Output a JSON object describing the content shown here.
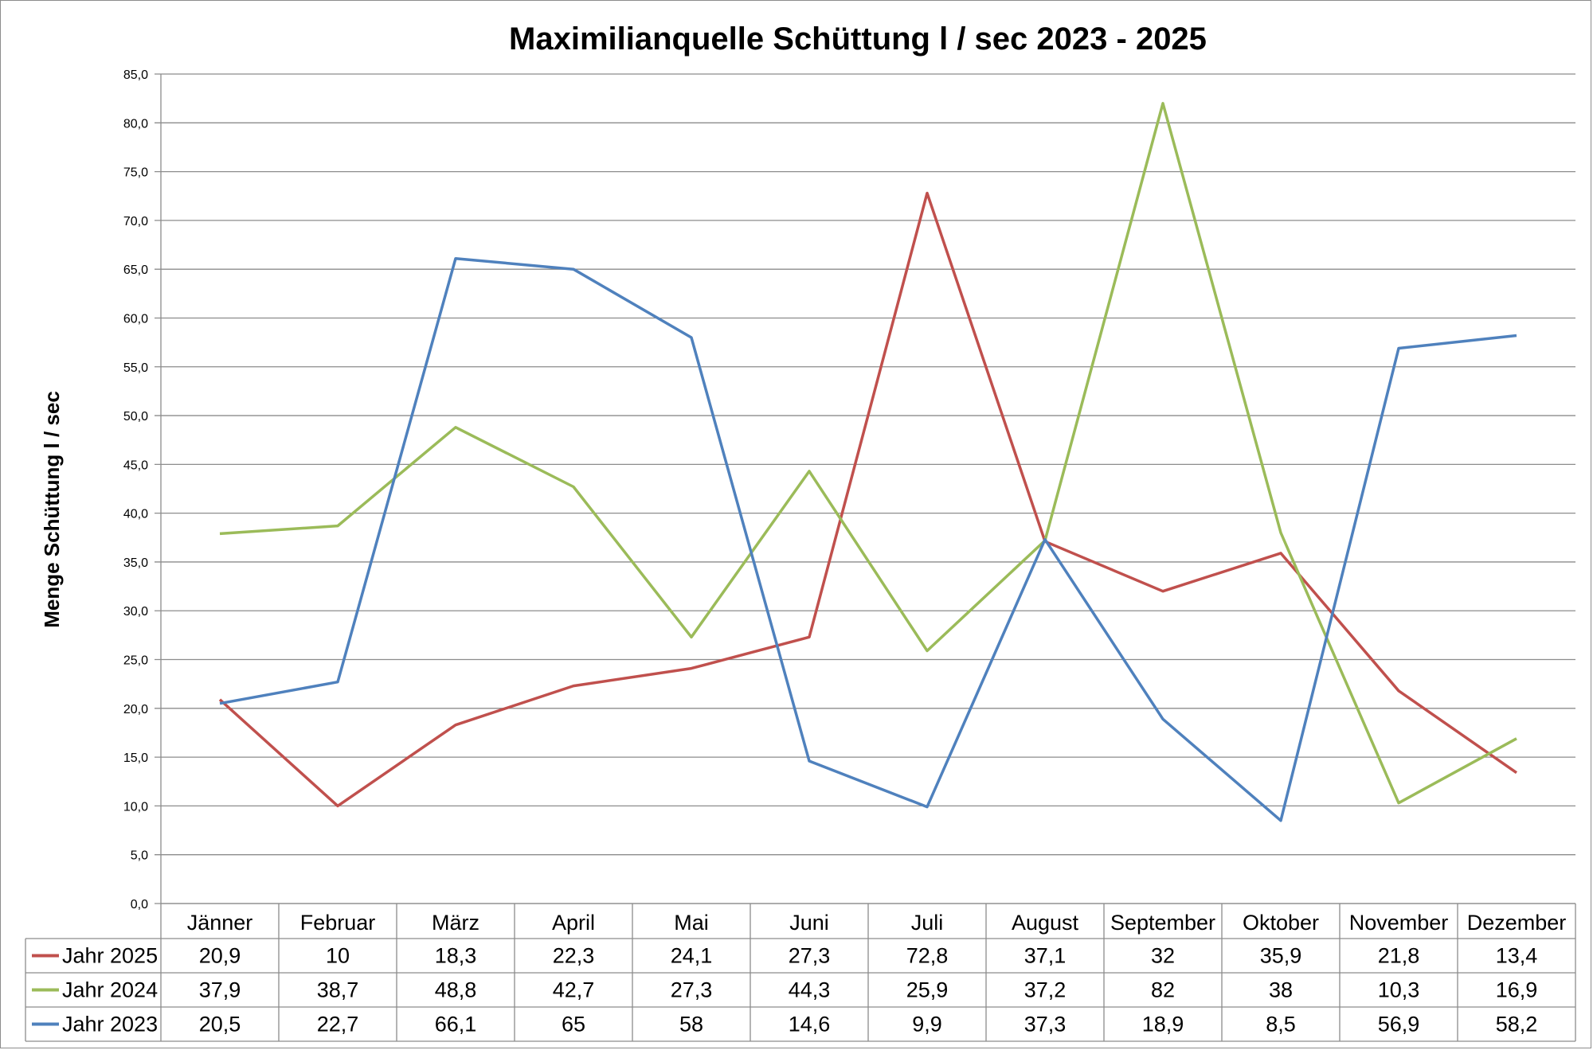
{
  "chart_data": {
    "type": "line",
    "title": "Maximilianquelle Schüttung l / sec 2023 - 2025",
    "ylabel": "Menge Schüttung l / sec",
    "xlabel": "",
    "ylim": [
      0,
      85
    ],
    "y_ticks": [
      "0,0",
      "5,0",
      "10,0",
      "15,0",
      "20,0",
      "25,0",
      "30,0",
      "35,0",
      "40,0",
      "45,0",
      "50,0",
      "55,0",
      "60,0",
      "65,0",
      "70,0",
      "75,0",
      "80,0",
      "85,0"
    ],
    "grid": true,
    "legend": "data-table-below",
    "categories": [
      "Jänner",
      "Februar",
      "März",
      "April",
      "Mai",
      "Juni",
      "Juli",
      "August",
      "September",
      "Oktober",
      "November",
      "Dezember"
    ],
    "series": [
      {
        "name": "Jahr 2025",
        "color": "#c0504d",
        "values": [
          20.9,
          10,
          18.3,
          22.3,
          24.1,
          27.3,
          72.8,
          37.1,
          32,
          35.9,
          21.8,
          13.4
        ],
        "labels": [
          "20,9",
          "10",
          "18,3",
          "22,3",
          "24,1",
          "27,3",
          "72,8",
          "37,1",
          "32",
          "35,9",
          "21,8",
          "13,4"
        ]
      },
      {
        "name": "Jahr 2024",
        "color": "#9bbb59",
        "values": [
          37.9,
          38.7,
          48.8,
          42.7,
          27.3,
          44.3,
          25.9,
          37.2,
          82,
          38,
          10.3,
          16.9
        ],
        "labels": [
          "37,9",
          "38,7",
          "48,8",
          "42,7",
          "27,3",
          "44,3",
          "25,9",
          "37,2",
          "82",
          "38",
          "10,3",
          "16,9"
        ]
      },
      {
        "name": "Jahr 2023",
        "color": "#4f81bd",
        "values": [
          20.5,
          22.7,
          66.1,
          65,
          58,
          14.6,
          9.9,
          37.3,
          18.9,
          8.5,
          56.9,
          58.2
        ],
        "labels": [
          "20,5",
          "22,7",
          "66,1",
          "65",
          "58",
          "14,6",
          "9,9",
          "37,3",
          "18,9",
          "8,5",
          "56,9",
          "58,2"
        ]
      }
    ]
  }
}
